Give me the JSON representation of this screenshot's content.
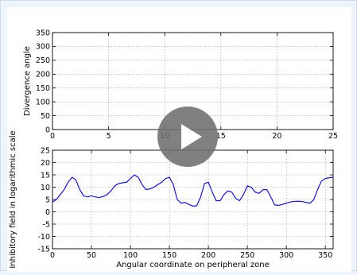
{
  "player": {
    "play_label": "Play"
  },
  "chart_data": [
    {
      "type": "line",
      "title": "",
      "xlabel": "",
      "ylabel": "Divergence angle",
      "xlim": [
        0,
        25
      ],
      "ylim": [
        0,
        350
      ],
      "xticks": [
        0,
        5,
        10,
        15,
        20,
        25
      ],
      "yticks": [
        0,
        50,
        100,
        150,
        200,
        250,
        300,
        350
      ],
      "grid": true,
      "series": [
        {
          "values": [],
          "color": "#0000ff"
        }
      ]
    },
    {
      "type": "line",
      "title": "",
      "xlabel": "Angular coordinate on peripheral zone",
      "ylabel": "Inhibitory field in logarithmic scale",
      "xlim": [
        0,
        360
      ],
      "ylim": [
        -15,
        25
      ],
      "xticks": [
        0,
        50,
        100,
        150,
        200,
        250,
        300,
        350
      ],
      "yticks": [
        -15,
        -10,
        -5,
        0,
        5,
        10,
        15,
        20,
        25
      ],
      "grid": true,
      "series": [
        {
          "color": "#0000ff",
          "x": [
            0,
            5,
            10,
            15,
            20,
            25,
            30,
            35,
            40,
            45,
            50,
            55,
            60,
            65,
            70,
            75,
            80,
            85,
            90,
            95,
            100,
            105,
            110,
            115,
            120,
            125,
            130,
            135,
            140,
            145,
            150,
            155,
            160,
            165,
            170,
            175,
            180,
            185,
            190,
            195,
            200,
            205,
            210,
            215,
            220,
            225,
            230,
            235,
            240,
            245,
            250,
            255,
            260,
            265,
            270,
            275,
            280,
            285,
            290,
            295,
            300,
            305,
            310,
            315,
            320,
            325,
            330,
            335,
            340,
            345,
            350,
            355,
            360
          ],
          "y": [
            4,
            5,
            7,
            9,
            12,
            14,
            13,
            9,
            6.5,
            6,
            6.5,
            6,
            5.8,
            6.2,
            7,
            8.5,
            10.5,
            11.5,
            11.8,
            12,
            13.5,
            15,
            14,
            11,
            9,
            9.3,
            10,
            11,
            12,
            13.5,
            14,
            11,
            5,
            3.5,
            3.8,
            3,
            2.3,
            2.5,
            6,
            11.5,
            12,
            8,
            4.5,
            4.5,
            7,
            8.5,
            8,
            5.5,
            4.5,
            7,
            10.5,
            10,
            8,
            7.5,
            9,
            9,
            6,
            2.8,
            2.6,
            3,
            3.5,
            4,
            4.2,
            4.3,
            4.2,
            3.8,
            3.5,
            4.8,
            9,
            12.5,
            13.5,
            13.8,
            14
          ]
        }
      ]
    }
  ]
}
